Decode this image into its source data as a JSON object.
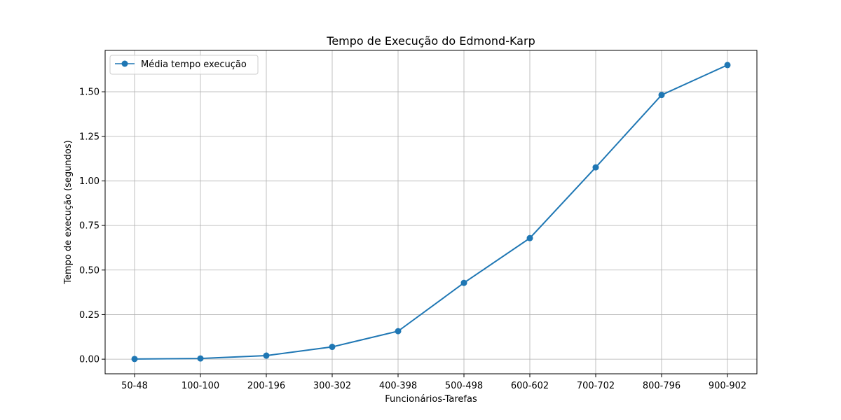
{
  "chart_data": {
    "type": "line",
    "title": "Tempo de Execução do Edmond-Karp",
    "xlabel": "Funcionários-Tarefas",
    "ylabel": "Tempo de execução (segundos)",
    "categories": [
      "50-48",
      "100-100",
      "200-196",
      "300-302",
      "400-398",
      "500-498",
      "600-602",
      "700-702",
      "800-796",
      "900-902"
    ],
    "series": [
      {
        "name": "Média tempo execução",
        "values": [
          0.001,
          0.004,
          0.02,
          0.069,
          0.157,
          0.428,
          0.679,
          1.076,
          1.482,
          1.65
        ],
        "color": "#1f77b4"
      }
    ],
    "ylim": [
      -0.082,
      1.732
    ],
    "yticks": [
      0.0,
      0.25,
      0.5,
      0.75,
      1.0,
      1.25,
      1.5
    ],
    "ytick_labels": [
      "0.00",
      "0.25",
      "0.50",
      "0.75",
      "1.00",
      "1.25",
      "1.50"
    ],
    "grid": true,
    "legend_position": "top-left"
  }
}
